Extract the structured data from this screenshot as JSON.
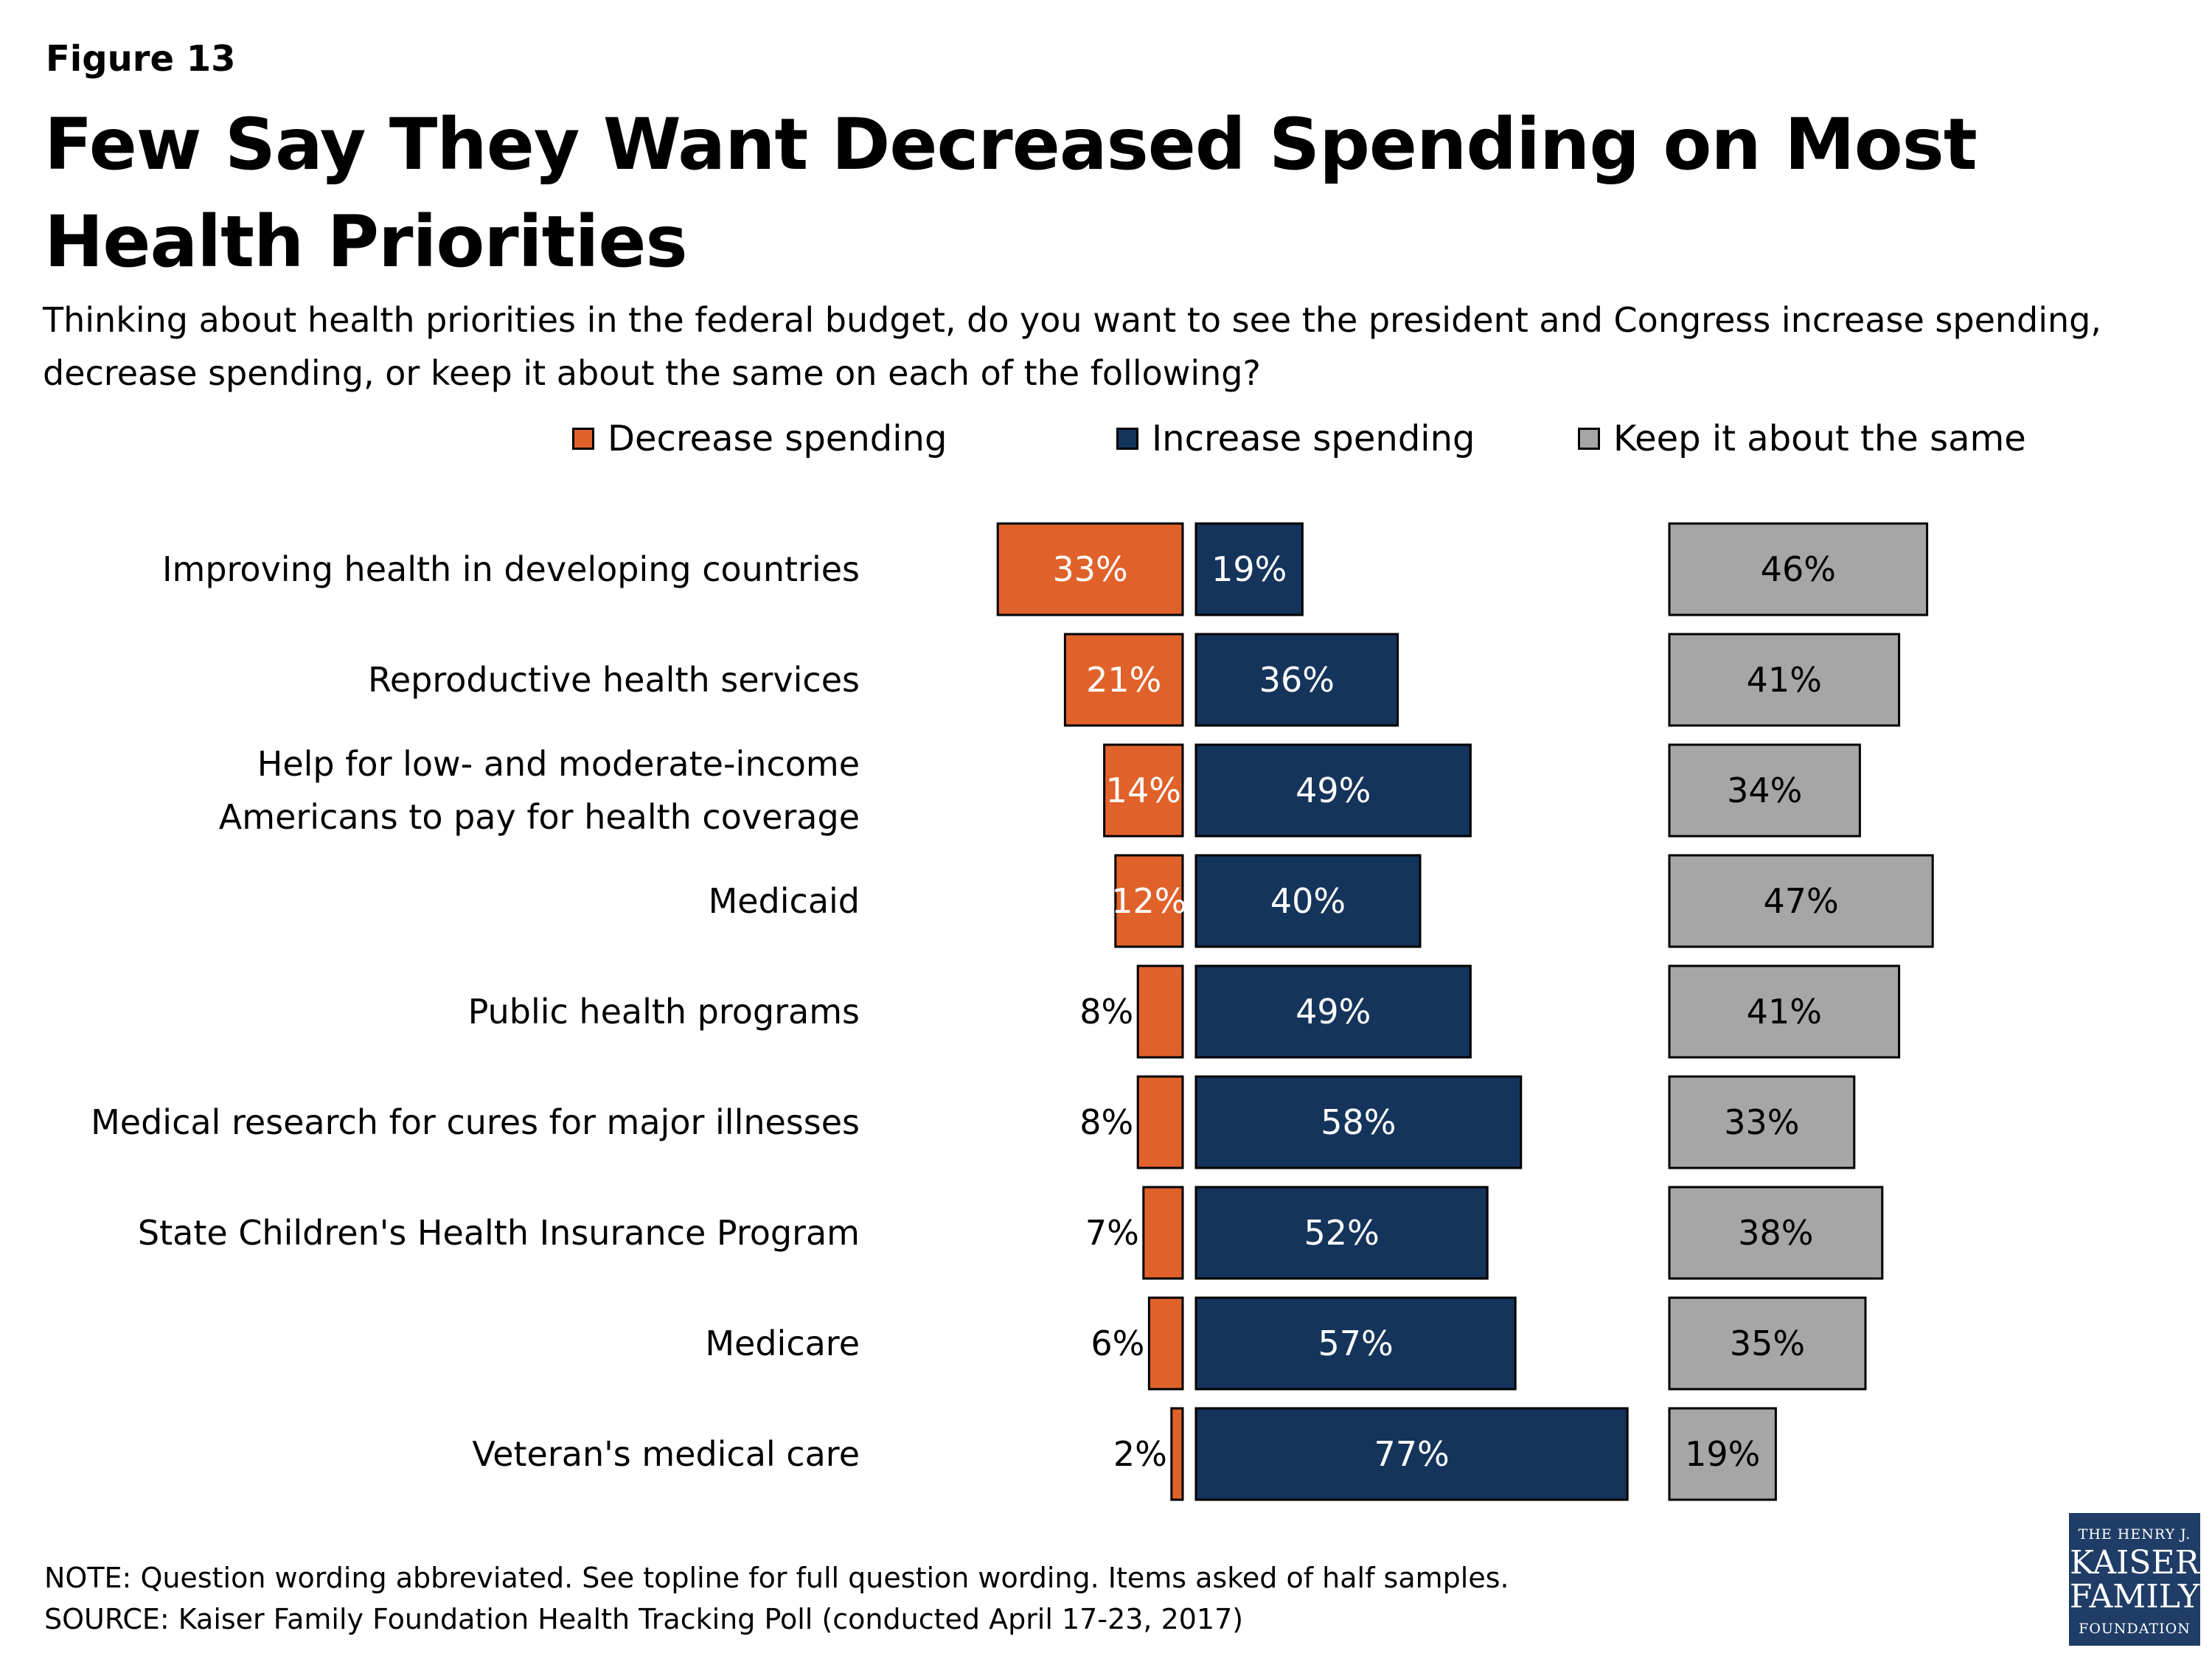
{
  "header": {
    "figure_label": "Figure 13",
    "title": "Few Say They Want Decreased Spending on Most Health Priorities",
    "subtitle": "Thinking about health priorities in the federal budget, do you want to see the president and Congress increase spending, decrease spending, or keep it about the same on each of the following?"
  },
  "legend": {
    "decrease": "Decrease spending",
    "increase": "Increase spending",
    "same": "Keep it about the same"
  },
  "colors": {
    "decrease": "#e0622a",
    "increase": "#15345b",
    "same": "#a6a6a6"
  },
  "chart_data": {
    "type": "bar",
    "orientation": "horizontal",
    "categories": [
      "Improving health in developing countries",
      "Reproductive health services",
      "Help for low- and moderate-income Americans to pay for health coverage",
      "Medicaid",
      "Public health programs",
      "Medical research for cures for major illnesses",
      "State Children's Health Insurance Program",
      "Medicare",
      "Veteran's medical care"
    ],
    "series": [
      {
        "name": "Decrease spending",
        "values": [
          33,
          21,
          14,
          12,
          8,
          8,
          7,
          6,
          2
        ]
      },
      {
        "name": "Increase spending",
        "values": [
          19,
          36,
          49,
          40,
          49,
          58,
          52,
          57,
          77
        ]
      },
      {
        "name": "Keep it about the same",
        "values": [
          46,
          41,
          34,
          47,
          41,
          33,
          38,
          35,
          19
        ]
      }
    ],
    "value_suffix": "%",
    "legend_position": "top",
    "grid": false
  },
  "footer": {
    "note": "NOTE: Question wording abbreviated. See topline for full question wording. Items asked of half samples.",
    "source": "SOURCE: Kaiser Family Foundation Health Tracking Poll (conducted April 17-23, 2017)"
  },
  "logo": {
    "line1": "THE HENRY J.",
    "line2": "KAISER",
    "line3": "FAMILY",
    "line4": "FOUNDATION"
  }
}
